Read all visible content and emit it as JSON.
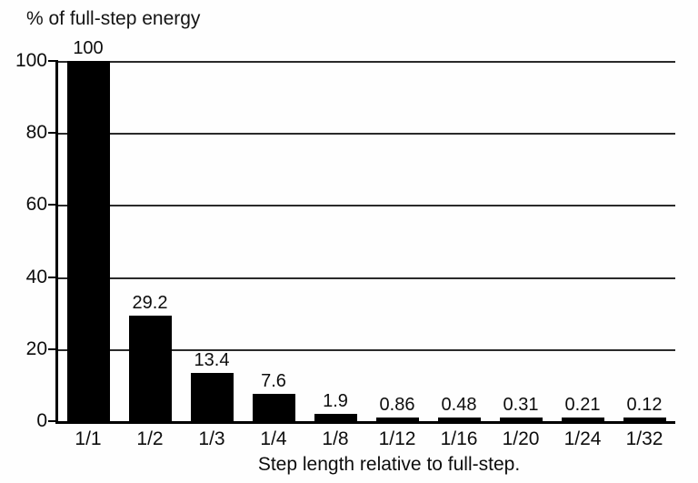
{
  "chart_data": {
    "type": "bar",
    "title": "% of full-step energy",
    "xlabel": "Step length relative to full-step.",
    "ylabel": "% of full-step energy",
    "categories": [
      "1/1",
      "1/2",
      "1/3",
      "1/4",
      "1/8",
      "1/12",
      "1/16",
      "1/20",
      "1/24",
      "1/32"
    ],
    "values": [
      100,
      29.2,
      13.4,
      7.6,
      1.9,
      0.86,
      0.48,
      0.31,
      0.21,
      0.12
    ],
    "value_labels": [
      "100",
      "29.2",
      "13.4",
      "7.6",
      "1.9",
      "0.86",
      "0.48",
      "0.31",
      "0.21",
      "0.12"
    ],
    "yticks": [
      0,
      20,
      40,
      60,
      80,
      100
    ],
    "ylim": [
      0,
      100
    ],
    "grid": true,
    "legend": "none",
    "bar_color": "#000000",
    "axis_color": "#000000",
    "grid_color": "#2a2a2a",
    "text_color": "#0d0d0d",
    "background": "#fefefe"
  }
}
